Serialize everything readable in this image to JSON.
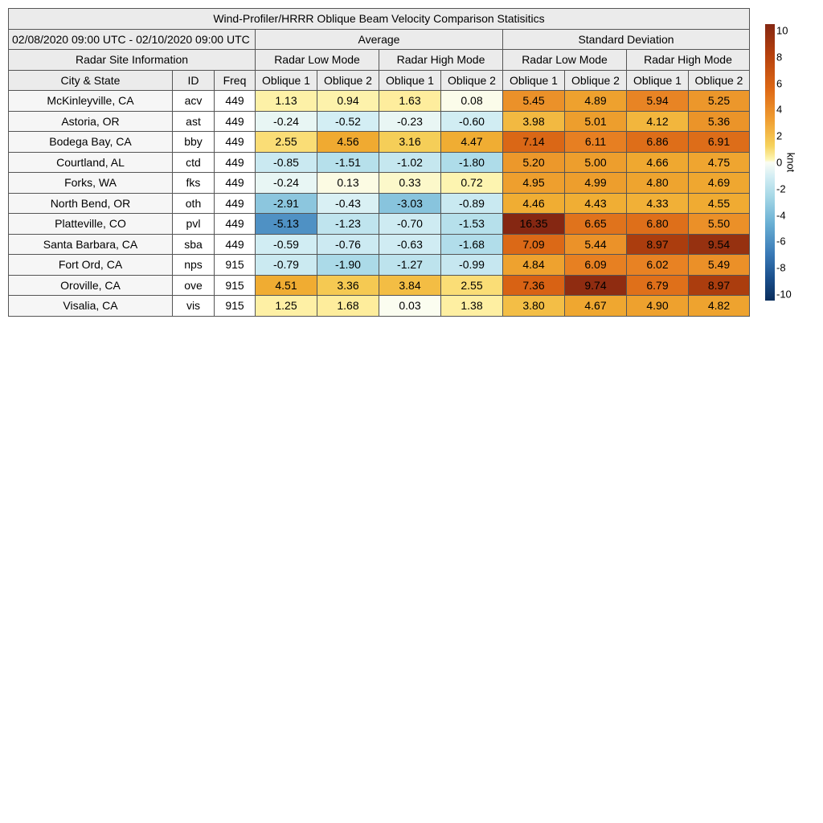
{
  "title": "Wind-Profiler/HRRR Oblique Beam Velocity Comparison Statisitics",
  "period": "02/08/2020 09:00 UTC - 02/10/2020 09:00 UTC",
  "group_headers": {
    "average": "Average",
    "std": "Standard Deviation"
  },
  "site_info_header": "Radar Site Information",
  "mode_headers": [
    "Radar Low Mode",
    "Radar High Mode",
    "Radar Low Mode",
    "Radar High Mode"
  ],
  "col_headers": [
    "City & State",
    "ID",
    "Freq",
    "Oblique 1",
    "Oblique 2",
    "Oblique 1",
    "Oblique 2",
    "Oblique 1",
    "Oblique 2",
    "Oblique 1",
    "Oblique 2"
  ],
  "colorbar": {
    "label": "knot",
    "range": [
      -10,
      10
    ],
    "ticks": [
      "10",
      "8",
      "6",
      "4",
      "2",
      "0",
      "-2",
      "-4",
      "-6",
      "-8",
      "-10"
    ],
    "colors": {
      "high": "#852712",
      "zero": "#fbfdf4",
      "low": "#0a2d5c"
    }
  },
  "chart_data": {
    "type": "table",
    "title": "Wind-Profiler/HRRR Oblique Beam Velocity Comparison Statisitics",
    "unit": "knot",
    "columns": [
      "Avg Low Oblique 1",
      "Avg Low Oblique 2",
      "Avg High Oblique 1",
      "Avg High Oblique 2",
      "Std Low Oblique 1",
      "Std Low Oblique 2",
      "Std High Oblique 1",
      "Std High Oblique 2"
    ],
    "rows": [
      {
        "city": "McKinleyville, CA",
        "id": "acv",
        "freq": "449",
        "values": [
          "1.13",
          "0.94",
          "1.63",
          "0.08",
          "5.45",
          "4.89",
          "5.94",
          "5.25"
        ]
      },
      {
        "city": "Astoria, OR",
        "id": "ast",
        "freq": "449",
        "values": [
          "-0.24",
          "-0.52",
          "-0.23",
          "-0.60",
          "3.98",
          "5.01",
          "4.12",
          "5.36"
        ]
      },
      {
        "city": "Bodega Bay, CA",
        "id": "bby",
        "freq": "449",
        "values": [
          "2.55",
          "4.56",
          "3.16",
          "4.47",
          "7.14",
          "6.11",
          "6.86",
          "6.91"
        ]
      },
      {
        "city": "Courtland, AL",
        "id": "ctd",
        "freq": "449",
        "values": [
          "-0.85",
          "-1.51",
          "-1.02",
          "-1.80",
          "5.20",
          "5.00",
          "4.66",
          "4.75"
        ]
      },
      {
        "city": "Forks, WA",
        "id": "fks",
        "freq": "449",
        "values": [
          "-0.24",
          "0.13",
          "0.33",
          "0.72",
          "4.95",
          "4.99",
          "4.80",
          "4.69"
        ]
      },
      {
        "city": "North Bend, OR",
        "id": "oth",
        "freq": "449",
        "values": [
          "-2.91",
          "-0.43",
          "-3.03",
          "-0.89",
          "4.46",
          "4.43",
          "4.33",
          "4.55"
        ]
      },
      {
        "city": "Platteville, CO",
        "id": "pvl",
        "freq": "449",
        "values": [
          "-5.13",
          "-1.23",
          "-0.70",
          "-1.53",
          "16.35",
          "6.65",
          "6.80",
          "5.50"
        ]
      },
      {
        "city": "Santa Barbara, CA",
        "id": "sba",
        "freq": "449",
        "values": [
          "-0.59",
          "-0.76",
          "-0.63",
          "-1.68",
          "7.09",
          "5.44",
          "8.97",
          "9.54"
        ]
      },
      {
        "city": "Fort Ord, CA",
        "id": "nps",
        "freq": "915",
        "values": [
          "-0.79",
          "-1.90",
          "-1.27",
          "-0.99",
          "4.84",
          "6.09",
          "6.02",
          "5.49"
        ]
      },
      {
        "city": "Oroville, CA",
        "id": "ove",
        "freq": "915",
        "values": [
          "4.51",
          "3.36",
          "3.84",
          "2.55",
          "7.36",
          "9.74",
          "6.79",
          "8.97"
        ]
      },
      {
        "city": "Visalia, CA",
        "id": "vis",
        "freq": "915",
        "values": [
          "1.25",
          "1.68",
          "0.03",
          "1.38",
          "3.80",
          "4.67",
          "4.90",
          "4.82"
        ]
      }
    ]
  }
}
